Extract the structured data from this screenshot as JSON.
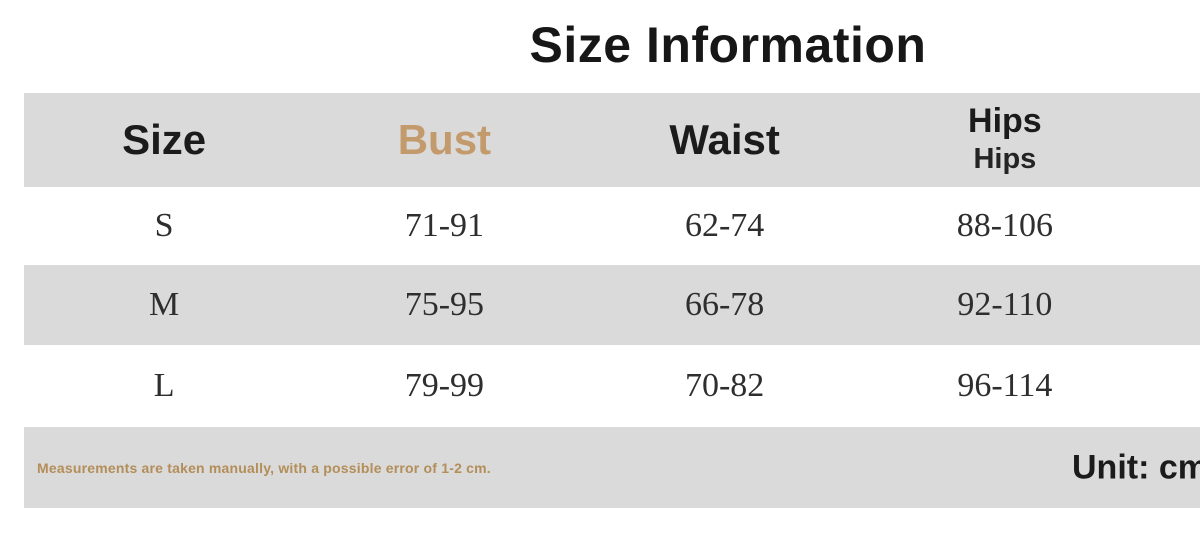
{
  "title": "Size Information",
  "table": {
    "columns": [
      "Size",
      "Bust",
      "Waist",
      "Hips"
    ],
    "hips_subline": "Hips",
    "rows": [
      {
        "size": "S",
        "bust": "71-91",
        "waist": "62-74",
        "hips": "88-106"
      },
      {
        "size": "M",
        "bust": "75-95",
        "waist": "66-78",
        "hips": "92-110"
      },
      {
        "size": "L",
        "bust": "79-99",
        "waist": "70-82",
        "hips": "96-114"
      }
    ]
  },
  "footer": {
    "note": "Measurements are taken manually, with a possible error of 1-2 cm.",
    "unit_label": "Unit: cm"
  },
  "colors": {
    "band_gray": "#dadada",
    "accent_tan": "#c39a6b",
    "note_tan": "#b38e58",
    "heading_ink": "#1b1b1b",
    "data_ink": "#2e2e2e",
    "background": "#ffffff"
  }
}
